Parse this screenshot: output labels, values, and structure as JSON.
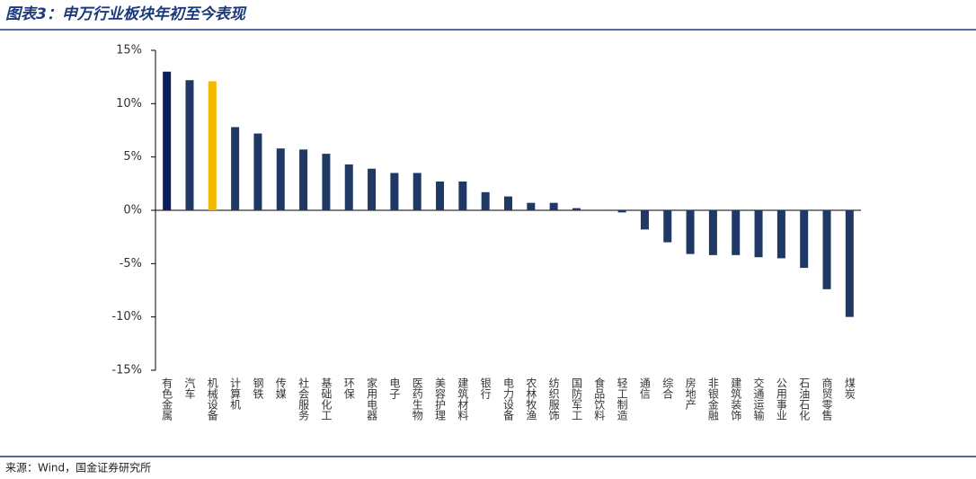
{
  "title": "图表3：申万行业板块年初至今表现",
  "source": "来源：Wind，国金证券研究所",
  "chart_data": {
    "type": "bar",
    "categories": [
      "有色金属",
      "汽车",
      "机械设备",
      "计算机",
      "钢铁",
      "传媒",
      "社会服务",
      "基础化工",
      "环保",
      "家用电器",
      "电子",
      "医药生物",
      "美容护理",
      "建筑材料",
      "银行",
      "电力设备",
      "农林牧渔",
      "纺织服饰",
      "国防军工",
      "食品饮料",
      "轻工制造",
      "通信",
      "综合",
      "房地产",
      "非银金融",
      "建筑装饰",
      "交通运输",
      "公用事业",
      "石油石化",
      "商贸零售",
      "煤炭"
    ],
    "values": [
      13.0,
      12.2,
      12.1,
      7.8,
      7.2,
      5.8,
      5.7,
      5.3,
      4.3,
      3.9,
      3.5,
      3.5,
      2.7,
      2.7,
      1.7,
      1.3,
      0.7,
      0.7,
      0.2,
      0.05,
      -0.2,
      -1.8,
      -3.0,
      -4.1,
      -4.2,
      -4.2,
      -4.4,
      -4.5,
      -5.4,
      -7.4,
      -10.0
    ],
    "colors": [
      "#0b1f5c",
      "#1f3864",
      "#f5b800",
      "#1f3864",
      "#1f3864",
      "#1f3864",
      "#1f3864",
      "#1f3864",
      "#1f3864",
      "#1f3864",
      "#1f3864",
      "#1f3864",
      "#1f3864",
      "#1f3864",
      "#1f3864",
      "#1f3864",
      "#1f3864",
      "#1f3864",
      "#1f3864",
      "#1f3864",
      "#1f3864",
      "#1f3864",
      "#1f3864",
      "#1f3864",
      "#1f3864",
      "#1f3864",
      "#1f3864",
      "#1f3864",
      "#1f3864",
      "#1f3864",
      "#1f3864"
    ],
    "ylim": [
      -15,
      15
    ],
    "yticks": [
      {
        "value": -15,
        "label": "-15%"
      },
      {
        "value": -10,
        "label": "-10%"
      },
      {
        "value": -5,
        "label": "-5%"
      },
      {
        "value": 0,
        "label": "0%"
      },
      {
        "value": 5,
        "label": "5%"
      },
      {
        "value": 10,
        "label": "10%"
      },
      {
        "value": 15,
        "label": "15%"
      }
    ],
    "grid": false
  }
}
